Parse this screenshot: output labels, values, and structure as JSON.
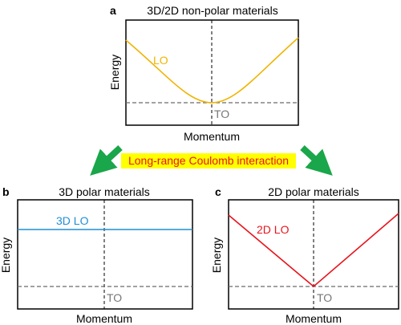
{
  "panels": {
    "a": {
      "letter": "a",
      "title": "3D/2D non-polar materials",
      "ylabel": "Energy",
      "xlabel": "Momentum",
      "curve_label": "LO",
      "flat_label": "TO"
    },
    "b": {
      "letter": "b",
      "title": "3D polar materials",
      "ylabel": "Energy",
      "xlabel": "Momentum",
      "curve_label": "3D LO",
      "flat_label": "TO"
    },
    "c": {
      "letter": "c",
      "title": "2D polar materials",
      "ylabel": "Energy",
      "xlabel": "Momentum",
      "curve_label": "2D LO",
      "flat_label": "TO"
    }
  },
  "interaction_label": "Long-range Coulomb interaction",
  "colors": {
    "lo_nonpolar": "#f0b400",
    "lo_3d": "#1f8fd6",
    "lo_2d": "#e8141c",
    "to_dashed": "#6b6b6b",
    "to_text": "#777777",
    "arrow": "#1aa64a",
    "banner_bg": "#ffff00",
    "banner_text": "#e8141c"
  }
}
